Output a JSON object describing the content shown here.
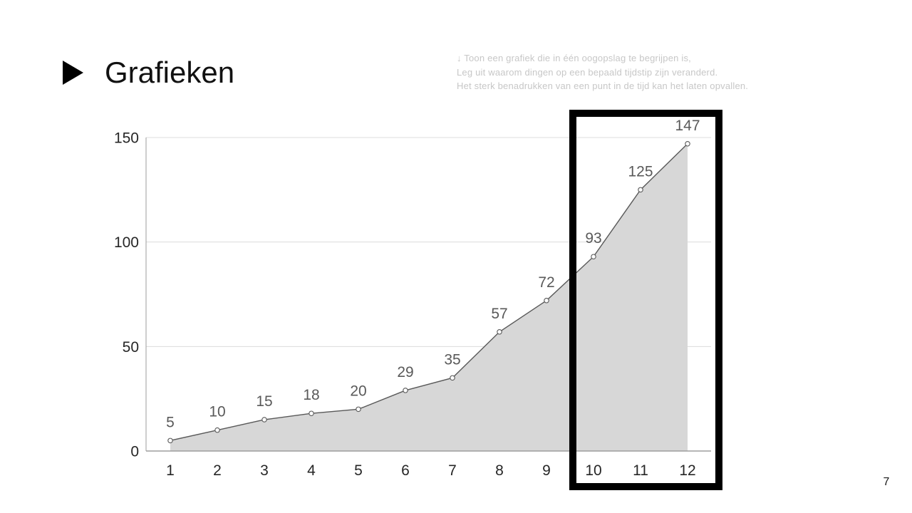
{
  "slide": {
    "title": "Grafieken",
    "page_number": "7",
    "notes": [
      "↓ Toon een grafiek die in één oogopslag te begrijpen is,",
      "Leg uit waarom dingen op een bepaald tijdstip zijn veranderd.",
      "Het sterk benadrukken van een punt in de tijd kan het laten opvallen."
    ]
  },
  "chart_data": {
    "type": "area",
    "title": "",
    "xlabel": "",
    "ylabel": "",
    "x": [
      1,
      2,
      3,
      4,
      5,
      6,
      7,
      8,
      9,
      10,
      11,
      12
    ],
    "values": [
      5,
      10,
      15,
      18,
      20,
      29,
      35,
      57,
      72,
      93,
      125,
      147
    ],
    "yticks": [
      0,
      50,
      100,
      150
    ],
    "ylim": [
      0,
      150
    ],
    "grid": true,
    "data_labels": true,
    "legend": "none",
    "highlight_range": [
      10,
      12
    ]
  },
  "colors": {
    "area_fill": "#d7d7d7",
    "line": "#595959",
    "marker_fill": "#ffffff",
    "marker_stroke": "#595959",
    "gridline": "#dcdcdc",
    "axis_line": "#9e9e9e",
    "data_label": "#595959",
    "tick_label": "#262626",
    "highlight_box": "#000000",
    "note_text": "#c7c7c7",
    "title_text": "#111111"
  }
}
